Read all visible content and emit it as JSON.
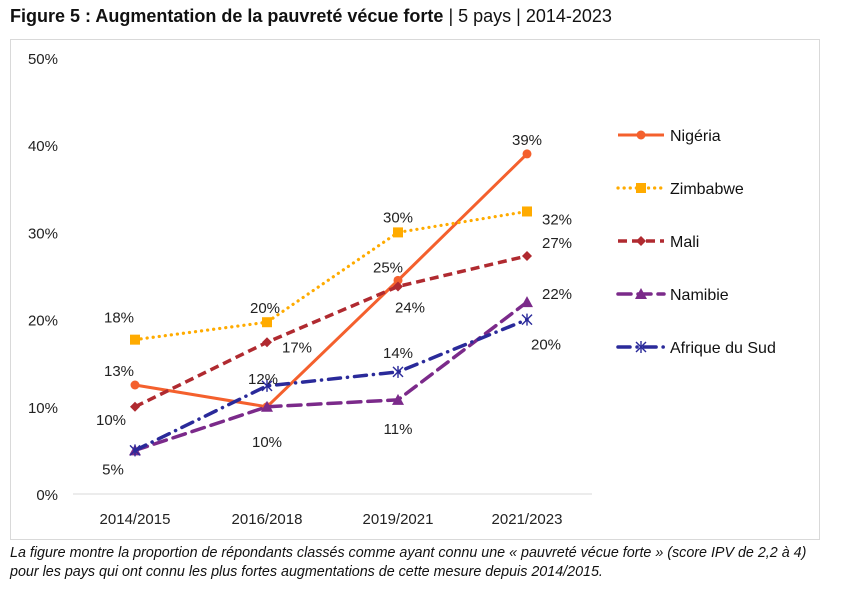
{
  "title": {
    "bold": "Figure 5 : Augmentation de la pauvreté vécue forte",
    "sep1": " | ",
    "countries": "5 pays",
    "sep2": " | ",
    "period": "2014-2023"
  },
  "caption": "La figure montre la proportion de répondants classés comme ayant connu une « pauvreté vécue forte » (score IPV de 2,2 à 4) pour les pays qui ont connu les plus fortes augmentations de cette mesure depuis 2014/2015.",
  "chart_data": {
    "type": "line",
    "title": "Augmentation de la pauvreté vécue forte",
    "xlabel": "",
    "ylabel": "",
    "categories": [
      "2014/2015",
      "2016/2018",
      "2019/2021",
      "2021/2023"
    ],
    "ylim": [
      0,
      50
    ],
    "yticks": [
      "0%",
      "10%",
      "20%",
      "30%",
      "40%",
      "50%"
    ],
    "grid": false,
    "legend": "right",
    "series": [
      {
        "name": "Nigéria",
        "values": [
          12.5,
          10,
          24.5,
          39
        ],
        "labels": [
          "13%",
          "10%",
          "25%",
          "39%"
        ],
        "color": "#f4602d",
        "style": "solid",
        "marker": "circle"
      },
      {
        "name": "Zimbabwe",
        "values": [
          17.7,
          19.7,
          30,
          32.4
        ],
        "labels": [
          "18%",
          "20%",
          "30%",
          "32%"
        ],
        "color": "#ffab00",
        "style": "dotted",
        "marker": "square"
      },
      {
        "name": "Mali",
        "values": [
          10,
          17.4,
          23.8,
          27.3
        ],
        "labels": [
          "10%",
          "17%",
          "24%",
          "27%"
        ],
        "color": "#b02a30",
        "style": "dashed",
        "marker": "diamond"
      },
      {
        "name": "Namibie",
        "values": [
          5,
          10,
          10.8,
          22
        ],
        "labels": [
          "5%",
          "",
          "11%",
          "22%"
        ],
        "color": "#7b2a8a",
        "style": "longdash",
        "marker": "triangle"
      },
      {
        "name": "Afrique du Sud",
        "values": [
          5,
          12.4,
          14,
          20
        ],
        "labels": [
          "",
          "12%",
          "14%",
          "20%"
        ],
        "color": "#2a2a9a",
        "style": "dashdot",
        "marker": "asterisk"
      }
    ]
  }
}
